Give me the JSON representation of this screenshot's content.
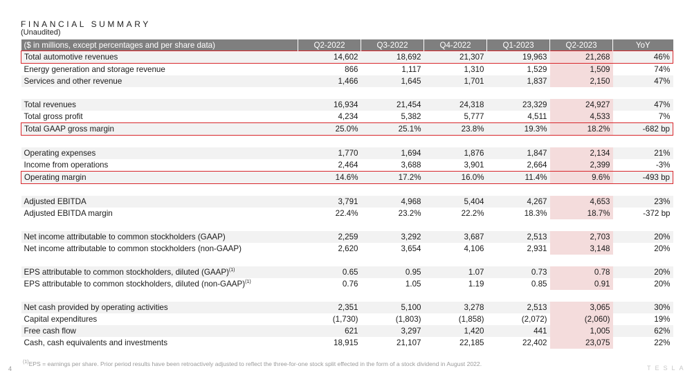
{
  "title": "FINANCIAL SUMMARY",
  "subtitle": "(Unaudited)",
  "header": {
    "label": "($ in millions, except percentages and per share data)",
    "columns": [
      "Q2-2022",
      "Q3-2022",
      "Q4-2022",
      "Q1-2023",
      "Q2-2023",
      "YoY"
    ]
  },
  "highlight_color": "#f4dcdc",
  "box_color": "#d8262b",
  "rows": [
    {
      "label": "Total automotive revenues",
      "values": [
        "14,602",
        "18,692",
        "21,307",
        "19,963",
        "21,268",
        "46%"
      ],
      "boxed": true
    },
    {
      "label": "Energy generation and storage revenue",
      "values": [
        "866",
        "1,117",
        "1,310",
        "1,529",
        "1,509",
        "74%"
      ]
    },
    {
      "label": "Services and other revenue",
      "values": [
        "1,466",
        "1,645",
        "1,701",
        "1,837",
        "2,150",
        "47%"
      ]
    },
    {
      "spacer": true
    },
    {
      "label": "Total revenues",
      "values": [
        "16,934",
        "21,454",
        "24,318",
        "23,329",
        "24,927",
        "47%"
      ]
    },
    {
      "label": "Total gross profit",
      "values": [
        "4,234",
        "5,382",
        "5,777",
        "4,511",
        "4,533",
        "7%"
      ]
    },
    {
      "label": "Total GAAP gross margin",
      "values": [
        "25.0%",
        "25.1%",
        "23.8%",
        "19.3%",
        "18.2%",
        "-682 bp"
      ],
      "boxed": true
    },
    {
      "spacer": true
    },
    {
      "label": "Operating expenses",
      "values": [
        "1,770",
        "1,694",
        "1,876",
        "1,847",
        "2,134",
        "21%"
      ]
    },
    {
      "label": "Income from operations",
      "values": [
        "2,464",
        "3,688",
        "3,901",
        "2,664",
        "2,399",
        "-3%"
      ]
    },
    {
      "label": "Operating margin",
      "values": [
        "14.6%",
        "17.2%",
        "16.0%",
        "11.4%",
        "9.6%",
        "-493 bp"
      ],
      "boxed": true
    },
    {
      "spacer": true
    },
    {
      "label": "Adjusted EBITDA",
      "values": [
        "3,791",
        "4,968",
        "5,404",
        "4,267",
        "4,653",
        "23%"
      ]
    },
    {
      "label": "Adjusted EBITDA margin",
      "values": [
        "22.4%",
        "23.2%",
        "22.2%",
        "18.3%",
        "18.7%",
        "-372 bp"
      ]
    },
    {
      "spacer": true
    },
    {
      "label": "Net income attributable to common stockholders (GAAP)",
      "values": [
        "2,259",
        "3,292",
        "3,687",
        "2,513",
        "2,703",
        "20%"
      ]
    },
    {
      "label": "Net income attributable to common stockholders (non-GAAP)",
      "values": [
        "2,620",
        "3,654",
        "4,106",
        "2,931",
        "3,148",
        "20%"
      ]
    },
    {
      "spacer": true
    },
    {
      "label": "EPS attributable to common stockholders, diluted (GAAP)",
      "sup": "(1)",
      "values": [
        "0.65",
        "0.95",
        "1.07",
        "0.73",
        "0.78",
        "20%"
      ]
    },
    {
      "label": "EPS attributable to common stockholders, diluted (non-GAAP)",
      "sup": "(1)",
      "values": [
        "0.76",
        "1.05",
        "1.19",
        "0.85",
        "0.91",
        "20%"
      ]
    },
    {
      "spacer": true
    },
    {
      "label": "Net cash provided by operating activities",
      "values": [
        "2,351",
        "5,100",
        "3,278",
        "2,513",
        "3,065",
        "30%"
      ]
    },
    {
      "label": "Capital expenditures",
      "values": [
        "(1,730)",
        "(1,803)",
        "(1,858)",
        "(2,072)",
        "(2,060)",
        "19%"
      ]
    },
    {
      "label": "Free cash flow",
      "values": [
        "621",
        "3,297",
        "1,420",
        "441",
        "1,005",
        "62%"
      ]
    },
    {
      "label": "Cash, cash equivalents and investments",
      "values": [
        "18,915",
        "21,107",
        "22,185",
        "22,402",
        "23,075",
        "22%"
      ]
    }
  ],
  "footnote_sup": "(1)",
  "footnote": "EPS = earnings per share. Prior period results have been retroactively adjusted to reflect the three-for-one stock split effected in the form of a stock dividend in August 2022.",
  "page_number": "4",
  "brand": "TESLA"
}
